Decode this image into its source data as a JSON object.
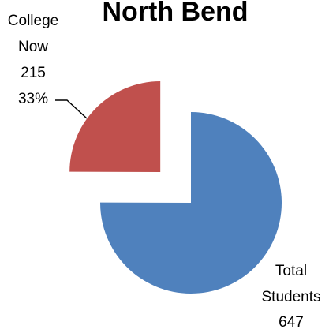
{
  "chart_data": {
    "type": "pie",
    "title": "North Bend",
    "categories": [
      "Total Students",
      "College Now"
    ],
    "values": [
      647,
      215
    ],
    "percents": [
      "67%",
      "33%"
    ],
    "exploded": [
      "College Now"
    ],
    "colors": [
      "#4F81BD",
      "#C0504D"
    ],
    "legend": "none",
    "data_labels": [
      {
        "category": "Total Students",
        "lines": [
          "Total",
          "Students",
          "647"
        ]
      },
      {
        "category": "College Now",
        "lines": [
          "College",
          "Now",
          "215",
          "33%"
        ]
      }
    ]
  }
}
